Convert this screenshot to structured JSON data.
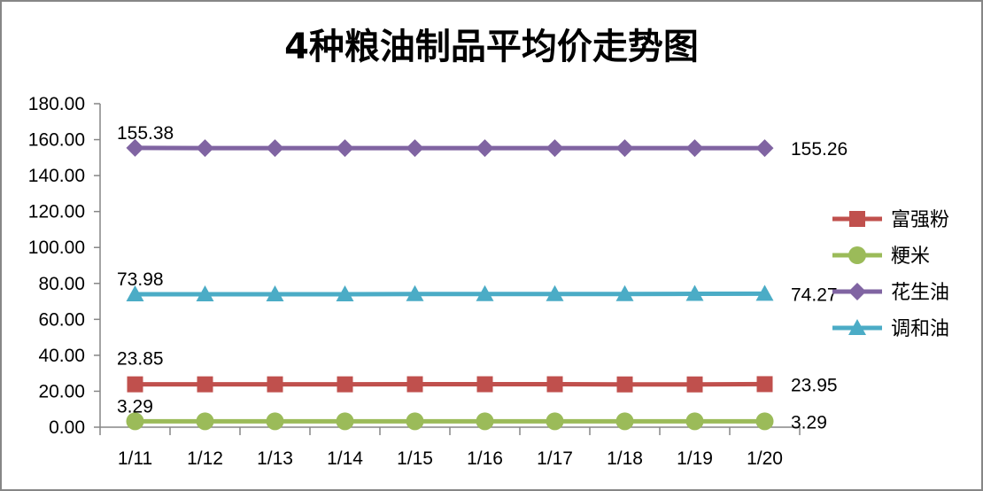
{
  "chart_data": {
    "type": "line",
    "title": "4种粮油制品平均价走势图",
    "xlabel": "",
    "ylabel": "",
    "categories": [
      "1/11",
      "1/12",
      "1/13",
      "1/14",
      "1/15",
      "1/16",
      "1/17",
      "1/18",
      "1/19",
      "1/20"
    ],
    "ylim": [
      0,
      180
    ],
    "yticks": [
      "0.00",
      "20.00",
      "40.00",
      "60.00",
      "80.00",
      "100.00",
      "120.00",
      "140.00",
      "160.00",
      "180.00"
    ],
    "grid": false,
    "legend_position": "right",
    "series": [
      {
        "name": "富强粉",
        "color": "#c0504d",
        "marker": "square",
        "values": [
          23.85,
          23.85,
          23.85,
          23.85,
          23.9,
          23.9,
          23.9,
          23.8,
          23.8,
          23.95
        ],
        "labels": {
          "first": "23.85",
          "last": "23.95"
        }
      },
      {
        "name": "粳米",
        "color": "#9bbb59",
        "marker": "circle",
        "values": [
          3.29,
          3.29,
          3.29,
          3.29,
          3.29,
          3.29,
          3.29,
          3.29,
          3.29,
          3.29
        ],
        "labels": {
          "first": "3.29",
          "last": "3.29"
        }
      },
      {
        "name": "花生油",
        "color": "#8064a2",
        "marker": "diamond",
        "values": [
          155.38,
          155.3,
          155.3,
          155.3,
          155.3,
          155.3,
          155.3,
          155.3,
          155.26,
          155.26
        ],
        "labels": {
          "first": "155.38",
          "last": "155.26"
        }
      },
      {
        "name": "调和油",
        "color": "#4bacc6",
        "marker": "triangle",
        "values": [
          73.98,
          74.0,
          74.0,
          74.0,
          74.1,
          74.1,
          74.1,
          74.1,
          74.2,
          74.27
        ],
        "labels": {
          "first": "73.98",
          "last": "74.27"
        }
      }
    ]
  }
}
